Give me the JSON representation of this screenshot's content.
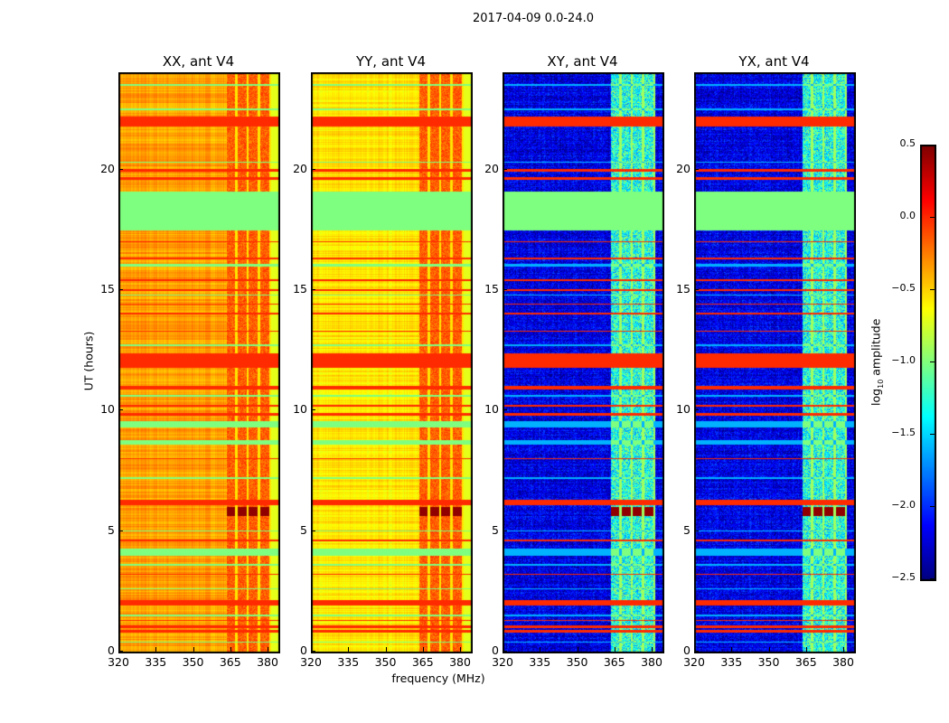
{
  "chart_data": {
    "type": "heatmap",
    "title": "2017-04-09 0.0-24.0",
    "xlabel": "frequency (MHz)",
    "ylabel": "UT (hours)",
    "xlim": [
      320,
      384
    ],
    "ylim": [
      0,
      24
    ],
    "xticks": [
      "320",
      "335",
      "350",
      "365",
      "380"
    ],
    "xtick_values": [
      320,
      335,
      350,
      365,
      380
    ],
    "yticks": [
      "0",
      "5",
      "10",
      "15",
      "20"
    ],
    "ytick_values": [
      0,
      5,
      10,
      15,
      20
    ],
    "colormap": "jet",
    "colorbar": {
      "label_prefix": "log",
      "label_sub": "10",
      "label_suffix": " amplitude",
      "range": [
        -2.5,
        0.5
      ],
      "ticks": [
        "0.5",
        "0.0",
        "−0.5",
        "−1.0",
        "−1.5",
        "−2.0",
        "−2.5"
      ],
      "tick_values": [
        0.5,
        0.0,
        -0.5,
        -1.0,
        -1.5,
        -2.0,
        -2.5
      ]
    },
    "panels": [
      {
        "title": "XX, ant V4",
        "base": -0.35,
        "band_level": -0.15
      },
      {
        "title": "YY, ant V4",
        "base": -0.55,
        "band_level": -0.15
      },
      {
        "title": "XY, ant V4",
        "base": -2.2,
        "band_level": -1.3
      },
      {
        "title": "YX, ant V4",
        "base": -2.2,
        "band_level": -1.3
      }
    ],
    "rfi_band_columns_mhz": [
      [
        363,
        366.5
      ],
      [
        367.5,
        371
      ],
      [
        372,
        375.5
      ],
      [
        376.5,
        380
      ]
    ],
    "flagged_time_range": [
      17.5,
      19.1
    ],
    "flagged_value": -1.0,
    "strong_time_bands": [
      [
        5.65,
        6.0,
        0.45
      ]
    ],
    "red_time_rows": [
      [
        0.8,
        0.9
      ],
      [
        1.0,
        1.1
      ],
      [
        1.3,
        1.35
      ],
      [
        1.95,
        2.15
      ],
      [
        3.2,
        3.25
      ],
      [
        4.6,
        4.65
      ],
      [
        6.1,
        6.3
      ],
      [
        8.0,
        8.05
      ],
      [
        9.8,
        9.9
      ],
      [
        10.2,
        10.25
      ],
      [
        10.9,
        11.05
      ],
      [
        11.8,
        12.4
      ],
      [
        13.3,
        13.35
      ],
      [
        14.0,
        14.1
      ],
      [
        14.4,
        14.45
      ],
      [
        15.0,
        15.05
      ],
      [
        15.4,
        15.45
      ],
      [
        16.3,
        16.35
      ],
      [
        17.0,
        17.05
      ],
      [
        19.6,
        19.7
      ],
      [
        19.95,
        20.05
      ],
      [
        21.8,
        22.2
      ]
    ],
    "green_time_rows": [
      [
        0.4,
        0.45
      ],
      [
        1.5,
        1.55
      ],
      [
        2.6,
        2.65
      ],
      [
        3.6,
        3.65
      ],
      [
        4.0,
        4.3
      ],
      [
        5.0,
        5.05
      ],
      [
        7.2,
        7.25
      ],
      [
        8.6,
        8.8
      ],
      [
        9.3,
        9.6
      ],
      [
        10.6,
        10.65
      ],
      [
        12.7,
        12.75
      ],
      [
        14.8,
        14.85
      ],
      [
        16.0,
        16.1
      ],
      [
        20.3,
        20.35
      ],
      [
        22.5,
        22.55
      ],
      [
        23.5,
        23.55
      ]
    ]
  }
}
